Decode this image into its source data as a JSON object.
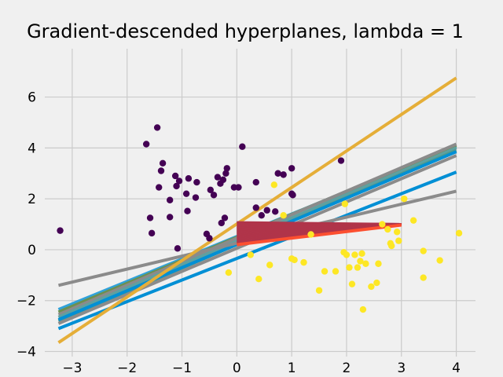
{
  "chart_data": {
    "type": "scatter",
    "title": "Gradient-descended hyperplanes, lambda = 1",
    "xlabel": "",
    "ylabel": "",
    "xlim": [
      -3.5,
      4.35
    ],
    "ylim": [
      -4.2,
      7.9
    ],
    "xticks": [
      -3,
      -2,
      -1,
      0,
      1,
      2,
      3,
      4
    ],
    "yticks": [
      -4,
      -2,
      0,
      2,
      4,
      6
    ],
    "xtick_labels": [
      "−3",
      "−2",
      "−1",
      "0",
      "1",
      "2",
      "3",
      "4"
    ],
    "ytick_labels": [
      "−4",
      "−2",
      "0",
      "2",
      "4",
      "6"
    ],
    "grid": true,
    "background": "#f0f0f0",
    "grid_color": "#cbcbcb",
    "class_colors": {
      "purple": "#440154",
      "yellow": "#fde725"
    },
    "points": [
      {
        "x": -3.22,
        "y": 0.75,
        "c": "purple"
      },
      {
        "x": -1.65,
        "y": 4.15,
        "c": "purple"
      },
      {
        "x": -1.45,
        "y": 4.8,
        "c": "purple"
      },
      {
        "x": -1.35,
        "y": 3.4,
        "c": "purple"
      },
      {
        "x": -1.38,
        "y": 3.1,
        "c": "purple"
      },
      {
        "x": -1.42,
        "y": 2.45,
        "c": "purple"
      },
      {
        "x": -1.58,
        "y": 1.25,
        "c": "purple"
      },
      {
        "x": -1.55,
        "y": 0.65,
        "c": "purple"
      },
      {
        "x": -1.22,
        "y": 1.95,
        "c": "purple"
      },
      {
        "x": -1.22,
        "y": 1.28,
        "c": "purple"
      },
      {
        "x": -1.12,
        "y": 2.9,
        "c": "purple"
      },
      {
        "x": -1.05,
        "y": 2.7,
        "c": "purple"
      },
      {
        "x": -1.1,
        "y": 2.5,
        "c": "purple"
      },
      {
        "x": -1.08,
        "y": 0.05,
        "c": "purple"
      },
      {
        "x": -0.92,
        "y": 2.2,
        "c": "purple"
      },
      {
        "x": -0.9,
        "y": 1.52,
        "c": "purple"
      },
      {
        "x": -0.88,
        "y": 2.8,
        "c": "purple"
      },
      {
        "x": -0.75,
        "y": 2.05,
        "c": "purple"
      },
      {
        "x": -0.73,
        "y": 2.65,
        "c": "purple"
      },
      {
        "x": -0.55,
        "y": 0.62,
        "c": "purple"
      },
      {
        "x": -0.5,
        "y": 0.45,
        "c": "purple"
      },
      {
        "x": -0.48,
        "y": 2.35,
        "c": "purple"
      },
      {
        "x": -0.42,
        "y": 2.15,
        "c": "purple"
      },
      {
        "x": -0.35,
        "y": 2.85,
        "c": "purple"
      },
      {
        "x": -0.3,
        "y": 2.6,
        "c": "purple"
      },
      {
        "x": -0.25,
        "y": 2.75,
        "c": "purple"
      },
      {
        "x": -0.28,
        "y": 1.05,
        "c": "purple"
      },
      {
        "x": -0.22,
        "y": 1.25,
        "c": "purple"
      },
      {
        "x": -0.2,
        "y": 3.0,
        "c": "purple"
      },
      {
        "x": -0.18,
        "y": 3.2,
        "c": "purple"
      },
      {
        "x": -0.05,
        "y": 2.45,
        "c": "purple"
      },
      {
        "x": 0.03,
        "y": 2.45,
        "c": "purple"
      },
      {
        "x": 0.1,
        "y": 4.05,
        "c": "purple"
      },
      {
        "x": 0.35,
        "y": 2.65,
        "c": "purple"
      },
      {
        "x": 0.35,
        "y": 1.65,
        "c": "purple"
      },
      {
        "x": 0.45,
        "y": 1.35,
        "c": "purple"
      },
      {
        "x": 0.55,
        "y": 1.55,
        "c": "purple"
      },
      {
        "x": 0.7,
        "y": 1.5,
        "c": "purple"
      },
      {
        "x": 0.75,
        "y": 3.0,
        "c": "purple"
      },
      {
        "x": 0.85,
        "y": 2.95,
        "c": "purple"
      },
      {
        "x": 1.0,
        "y": 3.2,
        "c": "purple"
      },
      {
        "x": 1.0,
        "y": 2.2,
        "c": "purple"
      },
      {
        "x": 1.02,
        "y": 2.15,
        "c": "purple"
      },
      {
        "x": 1.9,
        "y": 3.5,
        "c": "purple"
      },
      {
        "x": -0.15,
        "y": -0.9,
        "c": "yellow"
      },
      {
        "x": 0.25,
        "y": -0.2,
        "c": "yellow"
      },
      {
        "x": 0.4,
        "y": -1.15,
        "c": "yellow"
      },
      {
        "x": 0.6,
        "y": -0.6,
        "c": "yellow"
      },
      {
        "x": 0.68,
        "y": 2.55,
        "c": "yellow"
      },
      {
        "x": 0.85,
        "y": 1.35,
        "c": "yellow"
      },
      {
        "x": 1.0,
        "y": -0.35,
        "c": "yellow"
      },
      {
        "x": 1.05,
        "y": -0.4,
        "c": "yellow"
      },
      {
        "x": 1.22,
        "y": -0.5,
        "c": "yellow"
      },
      {
        "x": 1.35,
        "y": 0.6,
        "c": "yellow"
      },
      {
        "x": 1.5,
        "y": -1.6,
        "c": "yellow"
      },
      {
        "x": 1.6,
        "y": -0.85,
        "c": "yellow"
      },
      {
        "x": 1.8,
        "y": -0.85,
        "c": "yellow"
      },
      {
        "x": 1.95,
        "y": -0.1,
        "c": "yellow"
      },
      {
        "x": 1.97,
        "y": 1.8,
        "c": "yellow"
      },
      {
        "x": 2.0,
        "y": -0.2,
        "c": "yellow"
      },
      {
        "x": 2.05,
        "y": -0.7,
        "c": "yellow"
      },
      {
        "x": 2.1,
        "y": -1.35,
        "c": "yellow"
      },
      {
        "x": 2.15,
        "y": -0.2,
        "c": "yellow"
      },
      {
        "x": 2.2,
        "y": -0.7,
        "c": "yellow"
      },
      {
        "x": 2.25,
        "y": -0.45,
        "c": "yellow"
      },
      {
        "x": 2.28,
        "y": -0.15,
        "c": "yellow"
      },
      {
        "x": 2.3,
        "y": -2.35,
        "c": "yellow"
      },
      {
        "x": 2.35,
        "y": -0.55,
        "c": "yellow"
      },
      {
        "x": 2.45,
        "y": -1.45,
        "c": "yellow"
      },
      {
        "x": 2.55,
        "y": -1.3,
        "c": "yellow"
      },
      {
        "x": 2.58,
        "y": -0.55,
        "c": "yellow"
      },
      {
        "x": 2.65,
        "y": 1.0,
        "c": "yellow"
      },
      {
        "x": 2.75,
        "y": 0.8,
        "c": "yellow"
      },
      {
        "x": 2.8,
        "y": 0.25,
        "c": "yellow"
      },
      {
        "x": 2.82,
        "y": 0.15,
        "c": "yellow"
      },
      {
        "x": 2.92,
        "y": 0.7,
        "c": "yellow"
      },
      {
        "x": 2.95,
        "y": 0.35,
        "c": "yellow"
      },
      {
        "x": 3.05,
        "y": 2.0,
        "c": "yellow"
      },
      {
        "x": 3.22,
        "y": 1.15,
        "c": "yellow"
      },
      {
        "x": 3.4,
        "y": -0.05,
        "c": "yellow"
      },
      {
        "x": 3.4,
        "y": -1.1,
        "c": "yellow"
      },
      {
        "x": 3.7,
        "y": -0.42,
        "c": "yellow"
      },
      {
        "x": 4.05,
        "y": 0.65,
        "c": "yellow"
      }
    ],
    "hyperplanes": [
      {
        "x": [
          -3.25,
          4.0
        ],
        "y": [
          -2.35,
          4.05
        ],
        "color": "#30a2da",
        "width": 4
      },
      {
        "x": [
          -3.25,
          4.0
        ],
        "y": [
          -2.45,
          4.1
        ],
        "color": "#6d904f",
        "width": 4
      },
      {
        "x": [
          -3.25,
          4.0
        ],
        "y": [
          -2.55,
          4.15
        ],
        "color": "#8b8b8b",
        "width": 4
      },
      {
        "x": [
          -3.25,
          4.0
        ],
        "y": [
          -2.65,
          4.0
        ],
        "color": "#5fa0a0",
        "width": 4
      },
      {
        "x": [
          -3.25,
          4.0
        ],
        "y": [
          -2.8,
          3.9
        ],
        "color": "#4e9a8c",
        "width": 4
      },
      {
        "x": [
          -3.25,
          4.0
        ],
        "y": [
          -2.9,
          3.7
        ],
        "color": "#8b8b8b",
        "width": 4
      },
      {
        "x": [
          -3.25,
          4.0
        ],
        "y": [
          -2.75,
          3.85
        ],
        "color": "#008fd5",
        "width": 4
      },
      {
        "x": [
          -3.25,
          4.0
        ],
        "y": [
          -3.1,
          3.05
        ],
        "color": "#008fd5",
        "width": 4
      },
      {
        "x": [
          -3.25,
          4.0
        ],
        "y": [
          -1.4,
          2.3
        ],
        "color": "#8b8b8b",
        "width": 4
      },
      {
        "x": [
          -3.25,
          4.0
        ],
        "y": [
          -3.65,
          6.75
        ],
        "color": "#e5ae38",
        "width": 4
      }
    ],
    "bundle": {
      "start_x": 0.0,
      "end_x": 3.0,
      "start_y_range": [
        0.2,
        1.1
      ],
      "end_y_range": [
        0.97,
        1.03
      ],
      "count": 45,
      "color": "#b0354a",
      "final_color": "#fc4f30"
    }
  }
}
